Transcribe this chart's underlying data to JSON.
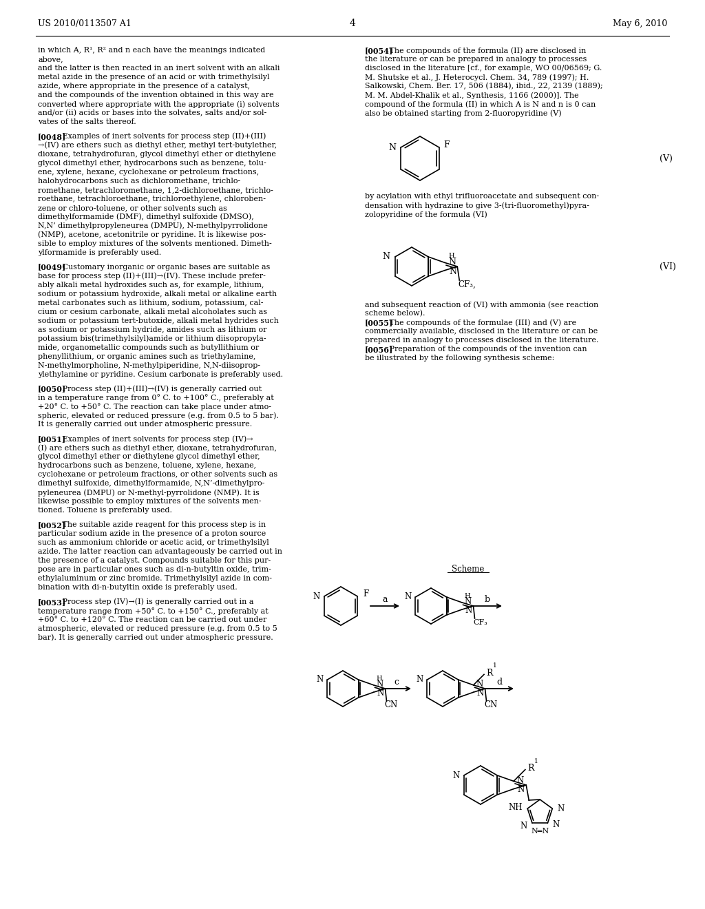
{
  "title_left": "US 2010/0113507 A1",
  "title_right": "May 6, 2010",
  "page_num": "4",
  "bg_color": "#ffffff",
  "col1_lines": [
    "in which A, R¹, R² and n each have the meanings indicated",
    "above,",
    "and the latter is then reacted in an inert solvent with an alkali",
    "metal azide in the presence of an acid or with trimethylsilyl",
    "azide, where appropriate in the presence of a catalyst,",
    "and the compounds of the invention obtained in this way are",
    "converted where appropriate with the appropriate (i) solvents",
    "and/or (ii) acids or bases into the solvates, salts and/or sol-",
    "vates of the salts thereof.",
    "",
    "[0048]   Examples of inert solvents for process step (II)+(III)",
    "→(IV) are ethers such as diethyl ether, methyl tert-butylether,",
    "dioxane, tetrahydrofuran, glycol dimethyl ether or diethylene",
    "glycol dimethyl ether, hydrocarbons such as benzene, tolu-",
    "ene, xylene, hexane, cyclohexane or petroleum fractions,",
    "halohydrocarbons such as dichloromethane, trichlo-",
    "romethane, tetrachloromethane, 1,2-dichloroethane, trichlo-",
    "roethane, tetrachloroethane, trichloroethylene, chloroben-",
    "zene or chloro-toluene, or other solvents such as",
    "dimethylformamide (DMF), dimethyl sulfoxide (DMSO),",
    "N,N’ dimethylpropyleneurea (DMPU), N-methylpyrrolidone",
    "(NMP), acetone, acetonitrile or pyridine. It is likewise pos-",
    "sible to employ mixtures of the solvents mentioned. Dimeth-",
    "ylformamide is preferably used.",
    "",
    "[0049]   Customary inorganic or organic bases are suitable as",
    "base for process step (II)+(III)→(IV). These include prefer-",
    "ably alkali metal hydroxides such as, for example, lithium,",
    "sodium or potassium hydroxide, alkali metal or alkaline earth",
    "metal carbonates such as lithium, sodium, potassium, cal-",
    "cium or cesium carbonate, alkali metal alcoholates such as",
    "sodium or potassium tert-butoxide, alkali metal hydrides such",
    "as sodium or potassium hydride, amides such as lithium or",
    "potassium bis(trimethylsilyl)amide or lithium diisopropyla-",
    "mide, organometallic compounds such as butyllithium or",
    "phenyllithium, or organic amines such as triethylamine,",
    "N-methylmorpholine, N-methylpiperidine, N,N-diisoprop-",
    "ylethylamine or pyridine. Cesium carbonate is preferably used.",
    "",
    "[0050]   Process step (II)+(III)→(IV) is generally carried out",
    "in a temperature range from 0° C. to +100° C., preferably at",
    "+20° C. to +50° C. The reaction can take place under atmo-",
    "spheric, elevated or reduced pressure (e.g. from 0.5 to 5 bar).",
    "It is generally carried out under atmospheric pressure.",
    "",
    "[0051]   Examples of inert solvents for process step (IV)→",
    "(I) are ethers such as diethyl ether, dioxane, tetrahydrofuran,",
    "glycol dimethyl ether or diethylene glycol dimethyl ether,",
    "hydrocarbons such as benzene, toluene, xylene, hexane,",
    "cyclohexane or petroleum fractions, or other solvents such as",
    "dimethyl sulfoxide, dimethylformamide, N,N’-dimethylpro-",
    "pyleneurea (DMPU) or N-methyl-pyrrolidone (NMP). It is",
    "likewise possible to employ mixtures of the solvents men-",
    "tioned. Toluene is preferably used.",
    "",
    "[0052]   The suitable azide reagent for this process step is in",
    "particular sodium azide in the presence of a proton source",
    "such as ammonium chloride or acetic acid, or trimethylsilyl",
    "azide. The latter reaction can advantageously be carried out in",
    "the presence of a catalyst. Compounds suitable for this pur-",
    "pose are in particular ones such as di-n-butyltin oxide, trim-",
    "ethylaluminum or zinc bromide. Trimethylsilyl azide in com-",
    "bination with di-n-butyltin oxide is preferably used.",
    "",
    "[0053]   Process step (IV)→(I) is generally carried out in a",
    "temperature range from +50° C. to +150° C., preferably at",
    "+60° C. to +120° C. The reaction can be carried out under",
    "atmospheric, elevated or reduced pressure (e.g. from 0.5 to 5",
    "bar). It is generally carried out under atmospheric pressure."
  ],
  "col2_pre_v": [
    "[0054]   The compounds of the formula (II) are disclosed in",
    "the literature or can be prepared in analogy to processes",
    "disclosed in the literature [cf., for example, WO 00/06569; G.",
    "M. Shutske et al., J. Heterocycl. Chem. 34, 789 (1997); H.",
    "Salkowski, Chem. Ber. 17, 506 (1884), ibid., 22, 2139 (1889);",
    "M. M. Abdel-Khalik et al., Synthesis, 1166 (2000)]. The",
    "compound of the formula (II) in which A is N and n is 0 can",
    "also be obtained starting from 2-fluoropyridine (V)"
  ],
  "col2_post_v": [
    "by acylation with ethyl trifluoroacetate and subsequent con-",
    "densation with hydrazine to give 3-(tri-fluoromethyl)pyra-",
    "zolopyridine of the formula (VI)"
  ],
  "col2_post_vi": [
    "and subsequent reaction of (VI) with ammonia (see reaction",
    "scheme below).",
    "[0055]   The compounds of the formulae (III) and (V) are",
    "commercially available, disclosed in the literature or can be",
    "prepared in analogy to processes disclosed in the literature.",
    "[0056]   Preparation of the compounds of the invention can",
    "be illustrated by the following synthesis scheme:"
  ]
}
